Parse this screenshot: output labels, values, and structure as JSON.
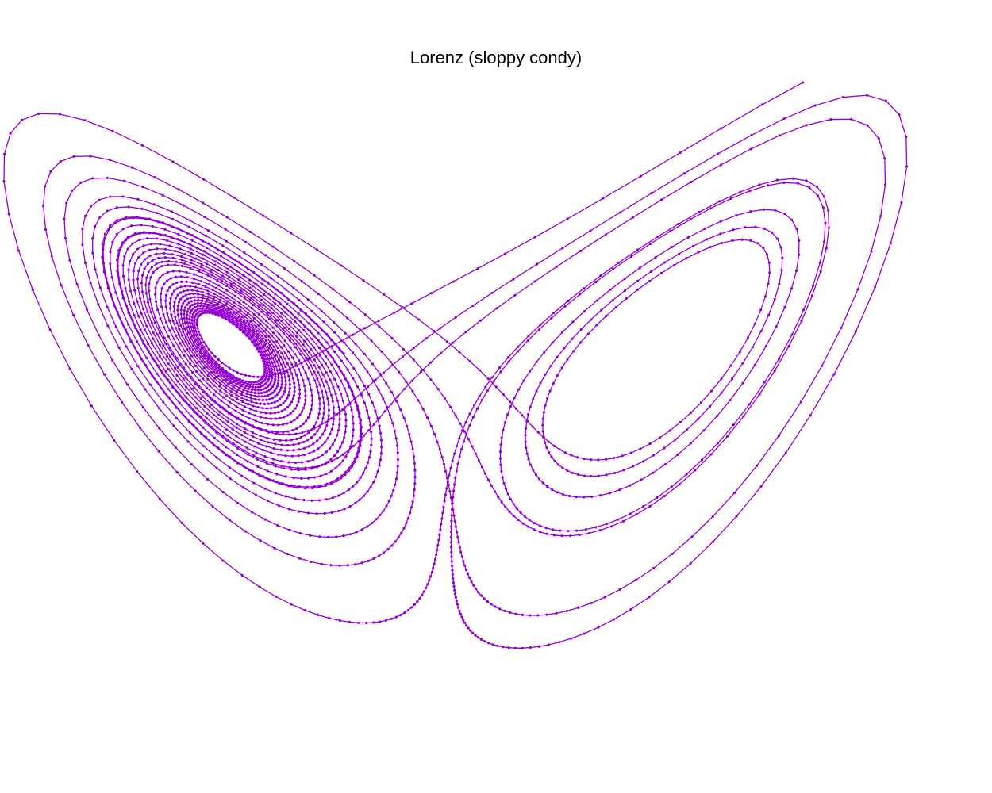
{
  "chart_data": {
    "type": "line",
    "title": "Lorenz (sloppy condy)",
    "xlabel": "",
    "ylabel": "",
    "grid": false,
    "axes_visible": false,
    "marker": "dot",
    "color": "#9400d3",
    "system": "lorenz",
    "parameters": {
      "sigma": 10,
      "rho": 28,
      "beta": 2.6667
    },
    "initial_condition": [
      1,
      1,
      1
    ],
    "time_step": 0.01,
    "steps": 2600,
    "projection": "x-z",
    "xlim": [
      -20,
      20
    ],
    "ylim": [
      0,
      50
    ]
  }
}
